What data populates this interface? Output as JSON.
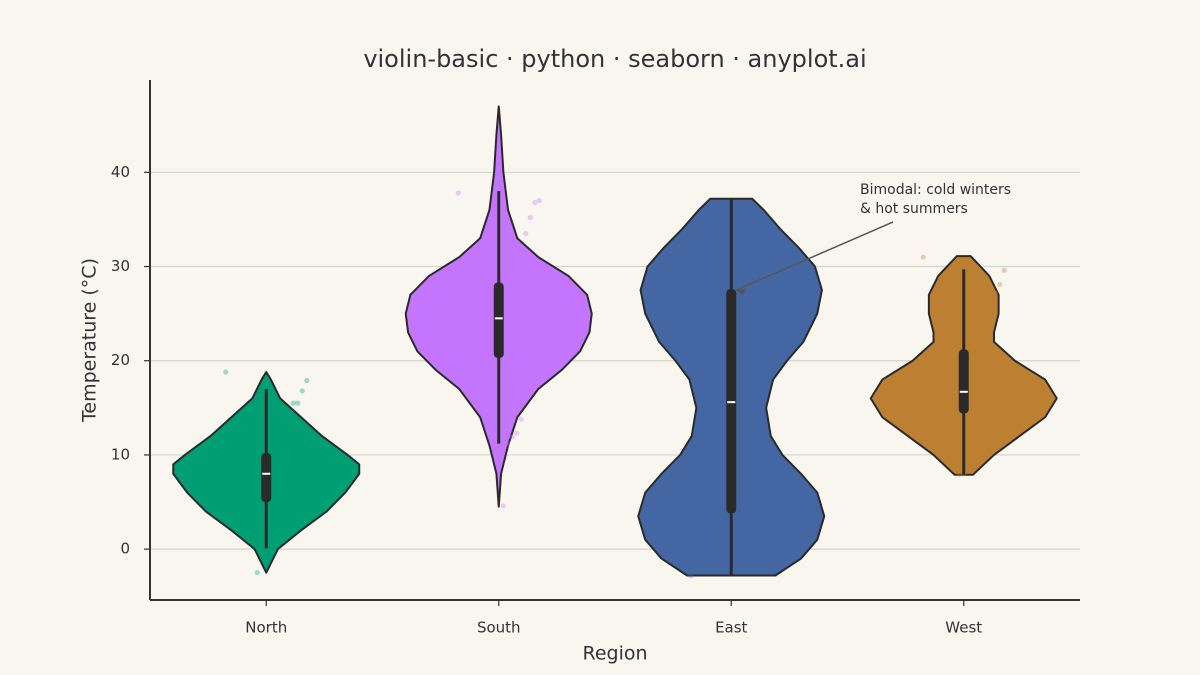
{
  "chart_data": {
    "type": "violin",
    "title": "violin-basic · python · seaborn · anyplot.ai",
    "x_label": "Region",
    "y_label": "Temperature (°C)",
    "categories": [
      "North",
      "South",
      "East",
      "West"
    ],
    "ylim": [
      -5.4,
      49.8
    ],
    "yticks": [
      0,
      10,
      20,
      30,
      40
    ],
    "grid": true,
    "series": [
      {
        "color": "#009e73",
        "whisker_low": 0.1,
        "q1": 5,
        "median": 8,
        "q3": 10.2,
        "whisker_high": 17,
        "profile_y": [
          -2.5,
          0,
          2,
          4,
          6,
          8,
          9,
          10,
          12,
          14,
          16,
          18,
          18.8
        ],
        "profile_width": [
          0,
          0.05,
          0.15,
          0.26,
          0.34,
          0.4,
          0.4,
          0.35,
          0.24,
          0.15,
          0.06,
          0.02,
          0
        ],
        "points": [
          18.8,
          17.9,
          16.8,
          15.5,
          15.5,
          14.3,
          14.2,
          13.8,
          13.8,
          2.3,
          1.8,
          0.2,
          -2.5
        ]
      },
      {
        "color": "#c475fd",
        "whisker_low": 11.2,
        "q1": 20.3,
        "median": 24.5,
        "q3": 28.3,
        "whisker_high": 38,
        "profile_y": [
          4.5,
          8,
          11,
          14,
          17,
          19,
          21,
          23,
          25,
          27,
          29,
          31,
          33,
          36,
          40,
          44,
          47
        ],
        "profile_width": [
          0,
          0.01,
          0.04,
          0.08,
          0.17,
          0.27,
          0.35,
          0.39,
          0.4,
          0.38,
          0.3,
          0.17,
          0.08,
          0.04,
          0.02,
          0.01,
          0
        ],
        "points": [
          37.8,
          37,
          36.8,
          35.2,
          33.5,
          13.8,
          12.3,
          11.9,
          11.2,
          4.6
        ]
      },
      {
        "color": "#4467a3",
        "whisker_low": -2.8,
        "q1": 3.8,
        "median": 15.6,
        "q3": 27.6,
        "whisker_high": 37.2,
        "profile_y": [
          -2.8,
          -1,
          1,
          3.5,
          6,
          8,
          10,
          12,
          15,
          18,
          20,
          22,
          25,
          27.5,
          30,
          32,
          34,
          36,
          37.2
        ],
        "profile_width": [
          0.19,
          0.3,
          0.37,
          0.4,
          0.37,
          0.3,
          0.22,
          0.17,
          0.15,
          0.18,
          0.24,
          0.31,
          0.37,
          0.39,
          0.36,
          0.29,
          0.21,
          0.14,
          0.09
        ],
        "points": [
          -2.8
        ]
      },
      {
        "color": "#bd8033",
        "whisker_low": 7.9,
        "q1": 14.4,
        "median": 16.7,
        "q3": 21.2,
        "whisker_high": 29.7,
        "profile_y": [
          7.9,
          10,
          12,
          14,
          16,
          18,
          20,
          22,
          23,
          25,
          27,
          29,
          31.1
        ],
        "profile_width": [
          0.04,
          0.13,
          0.24,
          0.35,
          0.4,
          0.35,
          0.22,
          0.13,
          0.13,
          0.15,
          0.15,
          0.11,
          0.03
        ],
        "points": [
          31,
          29.6,
          28.1,
          27.2,
          26.8,
          26.1,
          25,
          24.9,
          23.3,
          21.8,
          8,
          7.9
        ]
      }
    ],
    "annotation": {
      "lines": [
        "Bimodal: cold winters",
        "& hot summers"
      ],
      "value": 27.5
    }
  }
}
